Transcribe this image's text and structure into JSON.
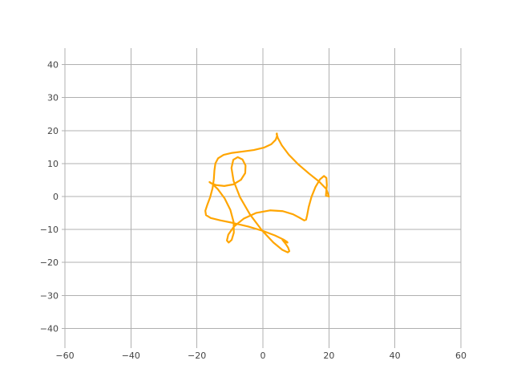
{
  "chart_data": {
    "type": "line",
    "title": "",
    "xlabel": "",
    "ylabel": "",
    "xlim": [
      -60,
      60
    ],
    "ylim": [
      -45,
      45
    ],
    "grid": true,
    "x_ticks": [
      -60,
      -40,
      -20,
      0,
      20,
      40,
      60
    ],
    "x_tick_labels": [
      "−60",
      "−40",
      "−20",
      "0",
      "20",
      "40",
      "60"
    ],
    "y_ticks": [
      -40,
      -30,
      -20,
      -10,
      0,
      10,
      20,
      30,
      40
    ],
    "y_tick_labels": [
      "−40",
      "−30",
      "−20",
      "−10",
      "0",
      "10",
      "20",
      "30",
      "40"
    ],
    "series": [
      {
        "color": "#ffa500",
        "x": [
          20.0,
          19.21,
          17.03,
          14.0,
          10.75,
          7.85,
          5.73,
          4.54,
          4.15,
          4.23,
          4.3,
          3.86,
          2.56,
          0.29,
          -2.78,
          -6.16,
          -9.35,
          -11.91,
          -13.57,
          -14.4,
          -14.7,
          -14.87,
          -15.25,
          -15.96,
          -16.84,
          -17.45,
          -17.25,
          -15.81,
          -12.96,
          -8.97,
          -4.44,
          0.0,
          3.69,
          6.19,
          7.37,
          7.45,
          6.9,
          6.25,
          5.94,
          6.17,
          6.85,
          7.63,
          8.01,
          7.52,
          5.88,
          3.15,
          -0.3,
          -3.89,
          -6.93,
          -8.88,
          -9.53,
          -8.97,
          -7.64,
          -6.18,
          -5.26,
          -5.36,
          -6.67,
          -8.96,
          -11.7,
          -14.18,
          -15.8,
          -16.18,
          -15.36,
          -13.65,
          -11.61,
          -9.87,
          -8.88,
          -8.81,
          -9.47,
          -10.38,
          -10.91,
          -10.49,
          -8.79,
          -5.84,
          -2.01,
          2.15,
          6.02,
          9.15,
          11.3,
          12.52,
          13.09,
          13.41,
          13.87,
          14.71,
          15.93,
          17.31,
          18.51,
          19.25,
          19.38,
          19.09,
          20.0
        ],
        "y": [
          0.0,
          2.27,
          4.53,
          6.95,
          9.71,
          12.68,
          15.51,
          17.73,
          18.97,
          19.13,
          18.41,
          17.19,
          15.88,
          14.81,
          14.09,
          13.63,
          13.23,
          12.63,
          11.61,
          10.03,
          7.89,
          5.33,
          2.57,
          -0.11,
          -2.48,
          -4.34,
          -5.65,
          -6.53,
          -7.23,
          -8.03,
          -9.1,
          -10.43,
          -11.83,
          -13.03,
          -13.78,
          -13.99,
          -13.75,
          -13.36,
          -13.16,
          -13.45,
          -14.3,
          -15.49,
          -16.56,
          -16.95,
          -16.17,
          -13.93,
          -10.25,
          -5.48,
          -0.24,
          4.71,
          8.67,
          11.15,
          11.94,
          11.21,
          9.4,
          7.12,
          5.05,
          3.68,
          3.19,
          3.46,
          4.06,
          4.38,
          3.87,
          2.2,
          -0.55,
          -4.04,
          -7.73,
          -10.96,
          -13.15,
          -13.96,
          -13.34,
          -11.55,
          -9.12,
          -6.73,
          -4.97,
          -4.2,
          -4.44,
          -5.4,
          -6.54,
          -7.25,
          -7.03,
          -5.64,
          -3.2,
          -0.13,
          2.91,
          5.22,
          6.24,
          5.63,
          3.45,
          0.29,
          0.0
        ]
      }
    ]
  }
}
